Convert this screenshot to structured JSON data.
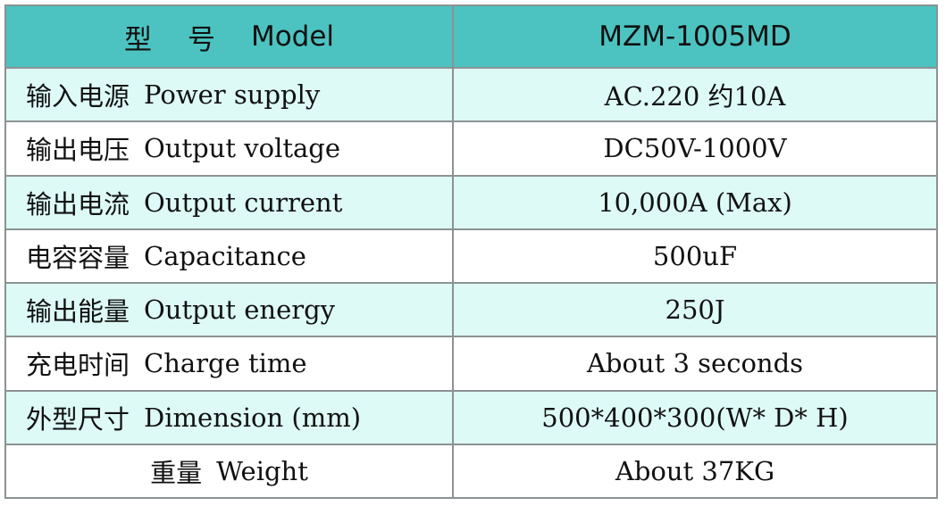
{
  "header": {
    "model_cn_1": "型",
    "model_cn_2": "号",
    "model_en": "Model",
    "model_value": "MZM-1005MD"
  },
  "rows": [
    {
      "cn": "输入电源",
      "en": "Power supply",
      "value": "AC.220 约10A"
    },
    {
      "cn": "输出电压",
      "en": "Output voltage",
      "value": "DC50V-1000V"
    },
    {
      "cn": "输出电流",
      "en": "Output current",
      "value": "10,000A (Max)"
    },
    {
      "cn": "电容容量",
      "en": "Capacitance",
      "value": "500uF"
    },
    {
      "cn": "输出能量",
      "en": "Output energy",
      "value": "250J"
    },
    {
      "cn": "充电时间",
      "en": "Charge time",
      "value": "About 3 seconds"
    },
    {
      "cn": "外型尺寸",
      "en": "Dimension (mm)",
      "value": "500*400*300(W* D* H)"
    },
    {
      "cn": "重量",
      "en": "Weight",
      "value": "About 37KG"
    }
  ],
  "colors": {
    "header_bg": "#4cc3c1",
    "row_mint": "#ddfaf6",
    "row_white": "#ffffff",
    "border": "#8c9294"
  }
}
